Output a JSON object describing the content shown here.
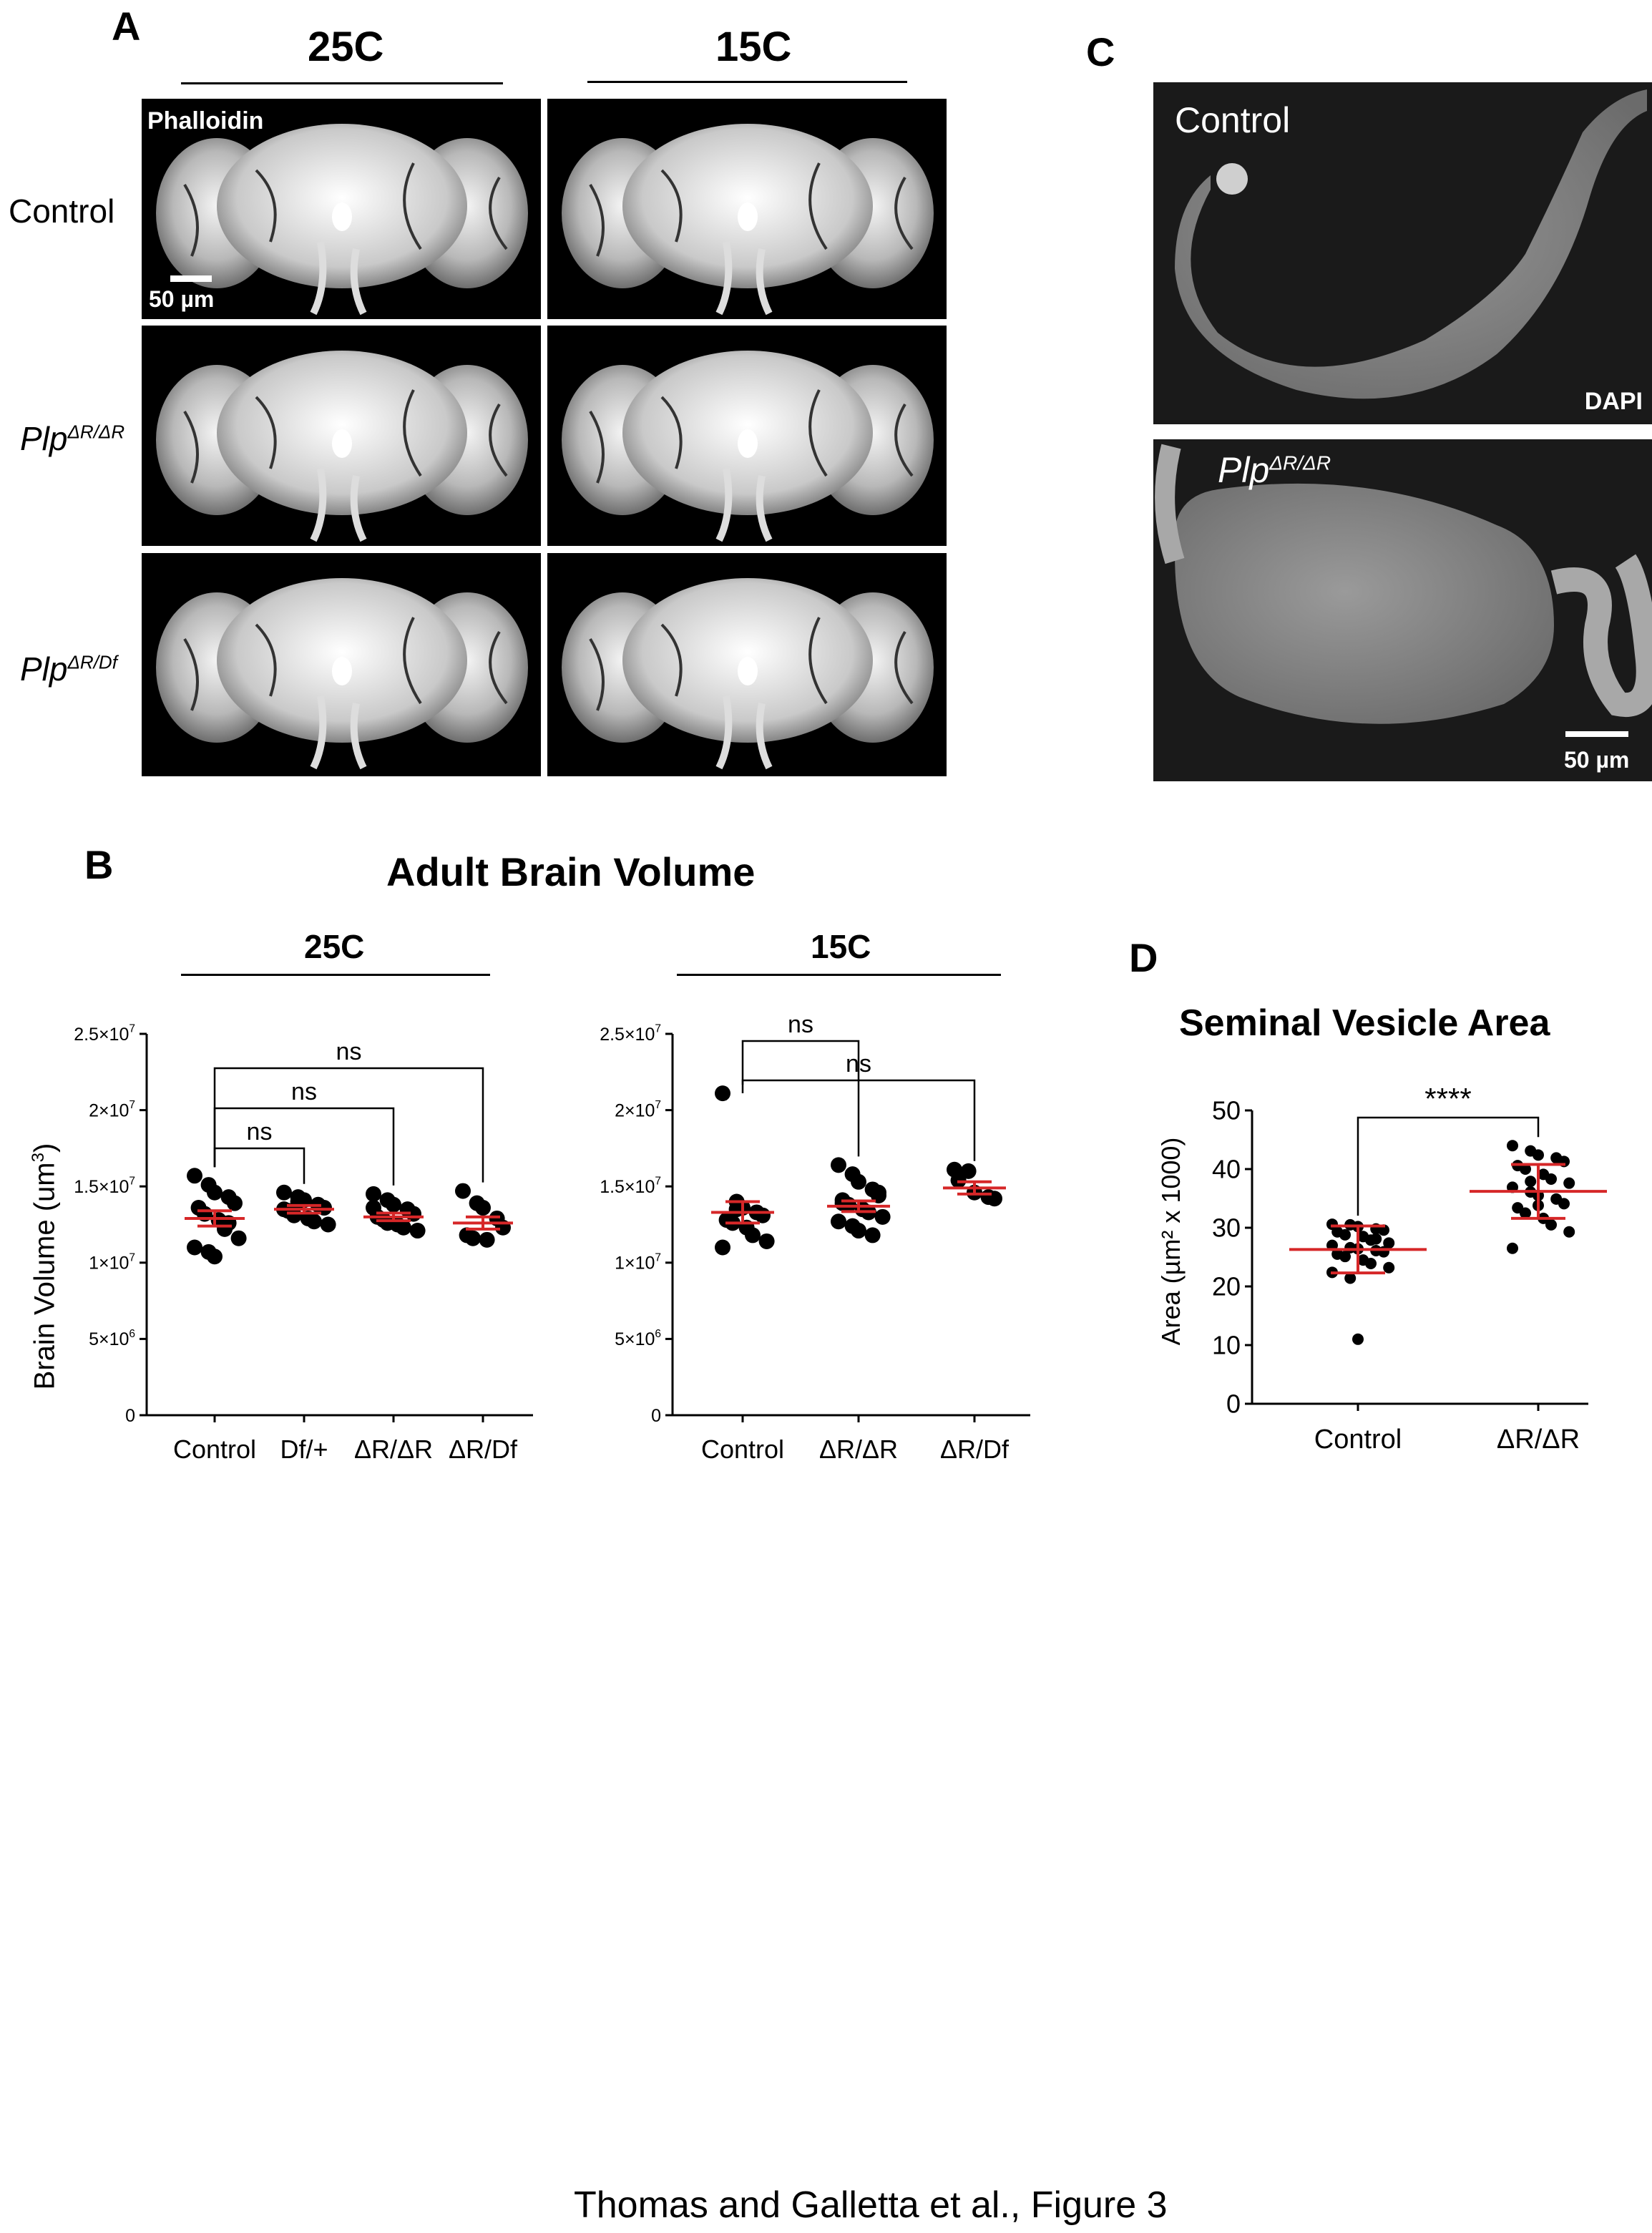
{
  "panelA": {
    "letter": "A",
    "col_25": "25C",
    "col_15": "15C",
    "stain": "Phalloidin",
    "scalebar": "50 µm",
    "rows": [
      {
        "base": "Control",
        "sup": ""
      },
      {
        "base": "Plp",
        "sup": "ΔR/ΔR"
      },
      {
        "base": "Plp",
        "sup": "ΔR/Df"
      }
    ]
  },
  "panelC": {
    "letter": "C",
    "control": "Control",
    "mutant_base": "Plp",
    "mutant_sup": "ΔR/ΔR",
    "stain": "DAPI",
    "scalebar": "50 µm"
  },
  "panelB": {
    "letter": "B",
    "title": "Adult Brain Volume",
    "group_25": "25C",
    "group_15": "15C",
    "ylabel_base": "Brain Volume (um",
    "ylabel_sup": "3",
    "ylabel_end": ")",
    "ns": "ns"
  },
  "panelD": {
    "letter": "D",
    "title": "Seminal Vesicle Area",
    "ylabel": "Area (µm² x 1000)",
    "sig": "****"
  },
  "caption": "Thomas and Galletta et al., Figure 3",
  "colors": {
    "mean_sd": "#d62728",
    "points": "#000000",
    "microscopy_bg": "#000000"
  },
  "chart_data": [
    {
      "type": "scatter",
      "title": "",
      "group": "25C",
      "categories": [
        "Control",
        "Df/+",
        "ΔR/ΔR",
        "ΔR/Df"
      ],
      "ylim": [
        0,
        25000000
      ],
      "yticks": [
        {
          "value": 0,
          "mant": "0",
          "exp": ""
        },
        {
          "value": 5000000,
          "mant": "5×10",
          "exp": "6"
        },
        {
          "value": 10000000,
          "mant": "1×10",
          "exp": "7"
        },
        {
          "value": 15000000,
          "mant": "1.5×10",
          "exp": "7"
        },
        {
          "value": 20000000,
          "mant": "2×10",
          "exp": "7"
        },
        {
          "value": 25000000,
          "mant": "2.5×10",
          "exp": "7"
        }
      ],
      "series": [
        {
          "category": "Control",
          "mean": 12900000,
          "sem": 500000,
          "values": [
            15700000,
            15100000,
            14600000,
            14300000,
            13900000,
            13600000,
            13200000,
            12800000,
            12200000,
            11600000,
            11000000,
            10700000,
            10400000,
            12600000
          ]
        },
        {
          "category": "Df/+",
          "mean": 13500000,
          "sem": 250000,
          "values": [
            14600000,
            14300000,
            14100000,
            13800000,
            13600000,
            13400000,
            13100000,
            12900000,
            12700000,
            12500000,
            13500000,
            14000000
          ]
        },
        {
          "category": "ΔR/ΔR",
          "mean": 13000000,
          "sem": 250000,
          "values": [
            14500000,
            14100000,
            13800000,
            13500000,
            13200000,
            13000000,
            12800000,
            12500000,
            12300000,
            12100000,
            13600000,
            12600000
          ]
        },
        {
          "category": "ΔR/Df",
          "mean": 12600000,
          "sem": 400000,
          "values": [
            14700000,
            13900000,
            13600000,
            12900000,
            12300000,
            11800000,
            11600000,
            11500000
          ]
        }
      ],
      "comparisons": [
        {
          "from": "Control",
          "to": "Df/+",
          "label": "ns"
        },
        {
          "from": "Control",
          "to": "ΔR/ΔR",
          "label": "ns"
        },
        {
          "from": "Control",
          "to": "ΔR/Df",
          "label": "ns"
        }
      ]
    },
    {
      "type": "scatter",
      "title": "",
      "group": "15C",
      "categories": [
        "Control",
        "ΔR/ΔR",
        "ΔR/Df"
      ],
      "ylim": [
        0,
        25000000
      ],
      "yticks": [
        {
          "value": 0,
          "mant": "0",
          "exp": ""
        },
        {
          "value": 5000000,
          "mant": "5×10",
          "exp": "6"
        },
        {
          "value": 10000000,
          "mant": "1×10",
          "exp": "7"
        },
        {
          "value": 15000000,
          "mant": "1.5×10",
          "exp": "7"
        },
        {
          "value": 20000000,
          "mant": "2×10",
          "exp": "7"
        },
        {
          "value": 25000000,
          "mant": "2.5×10",
          "exp": "7"
        }
      ],
      "series": [
        {
          "category": "Control",
          "mean": 13300000,
          "sem": 700000,
          "values": [
            21100000,
            14000000,
            13600000,
            13300000,
            13100000,
            12800000,
            12600000,
            12300000,
            11800000,
            11400000,
            11000000,
            13500000
          ]
        },
        {
          "category": "ΔR/ΔR",
          "mean": 13700000,
          "sem": 350000,
          "values": [
            16400000,
            15800000,
            15300000,
            14800000,
            14400000,
            14100000,
            13800000,
            13500000,
            13300000,
            13000000,
            12700000,
            12400000,
            12100000,
            11800000,
            14600000,
            13900000
          ]
        },
        {
          "category": "ΔR/Df",
          "mean": 14900000,
          "sem": 400000,
          "values": [
            16100000,
            16000000,
            14600000,
            14300000,
            14200000,
            15400000
          ]
        }
      ],
      "comparisons": [
        {
          "from": "Control",
          "to": "ΔR/ΔR",
          "label": "ns"
        },
        {
          "from": "Control",
          "to": "ΔR/Df",
          "label": "ns"
        }
      ]
    },
    {
      "type": "scatter",
      "title": "Seminal Vesicle Area",
      "ylabel": "Area (µm² x 1000)",
      "categories": [
        "Control",
        "ΔR/ΔR"
      ],
      "ylim": [
        0,
        50
      ],
      "yticks": [
        {
          "value": 0,
          "mant": "0",
          "exp": ""
        },
        {
          "value": 10,
          "mant": "10",
          "exp": ""
        },
        {
          "value": 20,
          "mant": "20",
          "exp": ""
        },
        {
          "value": 30,
          "mant": "30",
          "exp": ""
        },
        {
          "value": 40,
          "mant": "40",
          "exp": ""
        },
        {
          "value": 50,
          "mant": "50",
          "exp": ""
        }
      ],
      "series": [
        {
          "category": "Control",
          "mean": 26.3,
          "sd": 4.0,
          "values": [
            30.6,
            30.5,
            30.2,
            29.8,
            29.6,
            29.3,
            28.8,
            28.5,
            27.9,
            27.4,
            27.0,
            26.6,
            26.4,
            26.1,
            25.9,
            25.5,
            25.1,
            24.5,
            23.9,
            23.2,
            22.4,
            21.4,
            11.0,
            28.1
          ]
        },
        {
          "category": "ΔR/ΔR",
          "mean": 36.2,
          "sd": 4.6,
          "values": [
            44.0,
            43.1,
            42.4,
            41.9,
            41.3,
            40.6,
            40.0,
            39.1,
            38.3,
            37.6,
            36.9,
            36.1,
            35.5,
            34.9,
            34.1,
            33.4,
            32.5,
            31.6,
            30.5,
            29.3,
            26.5,
            37.9,
            33.8
          ]
        }
      ],
      "comparisons": [
        {
          "from": "Control",
          "to": "ΔR/ΔR",
          "label": "****"
        }
      ]
    }
  ]
}
